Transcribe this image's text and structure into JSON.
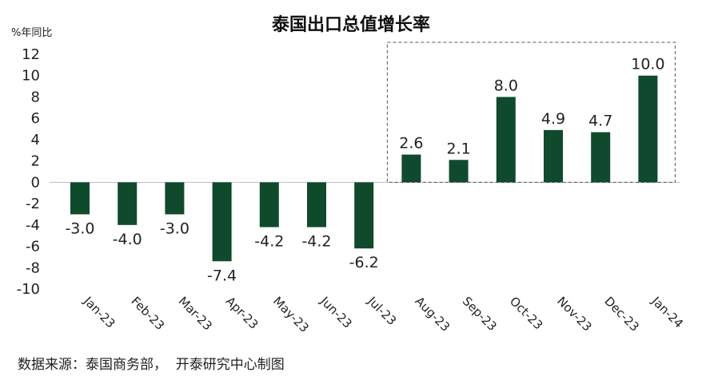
{
  "chart_data": {
    "type": "bar",
    "title": "泰国出口总值增长率",
    "ylabel": "%年同比",
    "xlabel": "",
    "categories": [
      "Jan-23",
      "Feb-23",
      "Mar-23",
      "Apr-23",
      "May-23",
      "Jun-23",
      "Jul-23",
      "Aug-23",
      "Sep-23",
      "Oct-23",
      "Nov-23",
      "Dec-23",
      "Jan-24"
    ],
    "values": [
      -3.0,
      -4.0,
      -3.0,
      -7.4,
      -4.2,
      -4.2,
      -6.2,
      2.6,
      2.1,
      8.0,
      4.9,
      4.7,
      10.0
    ],
    "data_labels": [
      "-3.0",
      "-4.0",
      "-3.0",
      "-7.4",
      "-4.2",
      "-4.2",
      "-6.2",
      "2.6",
      "2.1",
      "8.0",
      "4.9",
      "4.7",
      "10.0"
    ],
    "ylim": [
      -10,
      12
    ],
    "yticks": [
      12,
      10,
      8,
      6,
      4,
      2,
      0,
      -2,
      -4,
      -6,
      -8,
      -10
    ],
    "grid": false,
    "legend": "none",
    "bar_color": "#0f4a2c",
    "highlight_range": [
      "Aug-23",
      "Jan-24"
    ]
  },
  "source_note": "数据来源：泰国商务部，  开泰研究中心制图"
}
